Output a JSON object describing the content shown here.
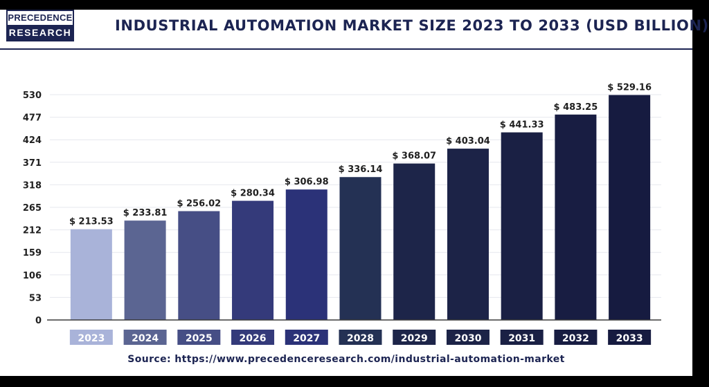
{
  "logo": {
    "line1": "PRECEDENCE",
    "line2": "RESEARCH"
  },
  "title": "INDUSTRIAL AUTOMATION MARKET SIZE 2023 TO 2033 (USD BILLION)",
  "source": "Source: https://www.precedenceresearch.com/industrial-automation-market",
  "colors": {
    "brand": "#1c2452",
    "bars": [
      "#a9b3d9",
      "#5b6592",
      "#464e85",
      "#343a7a",
      "#2b3278",
      "#243154",
      "#1d2549",
      "#1c2347",
      "#1a2044",
      "#181d42",
      "#161b40"
    ]
  },
  "chart_data": {
    "type": "bar",
    "categories": [
      "2023",
      "2024",
      "2025",
      "2026",
      "2027",
      "2028",
      "2029",
      "2030",
      "2031",
      "2032",
      "2033"
    ],
    "values": [
      213.53,
      233.81,
      256.02,
      280.34,
      306.98,
      336.14,
      368.07,
      403.04,
      441.33,
      483.25,
      529.16
    ],
    "data_labels": [
      "$ 213.53",
      "$ 233.81",
      "$ 256.02",
      "$ 280.34",
      "$ 306.98",
      "$ 336.14",
      "$ 368.07",
      "$ 403.04",
      "$ 441.33",
      "$ 483.25",
      "$ 529.16"
    ],
    "yticks": [
      0,
      53,
      106,
      159,
      212,
      265,
      318,
      371,
      424,
      477,
      530
    ],
    "ylim": [
      0,
      530
    ],
    "title": "INDUSTRIAL AUTOMATION MARKET SIZE 2023 TO 2033 (USD BILLION)",
    "xlabel": "",
    "ylabel": "",
    "grid": true,
    "legend": "none"
  }
}
